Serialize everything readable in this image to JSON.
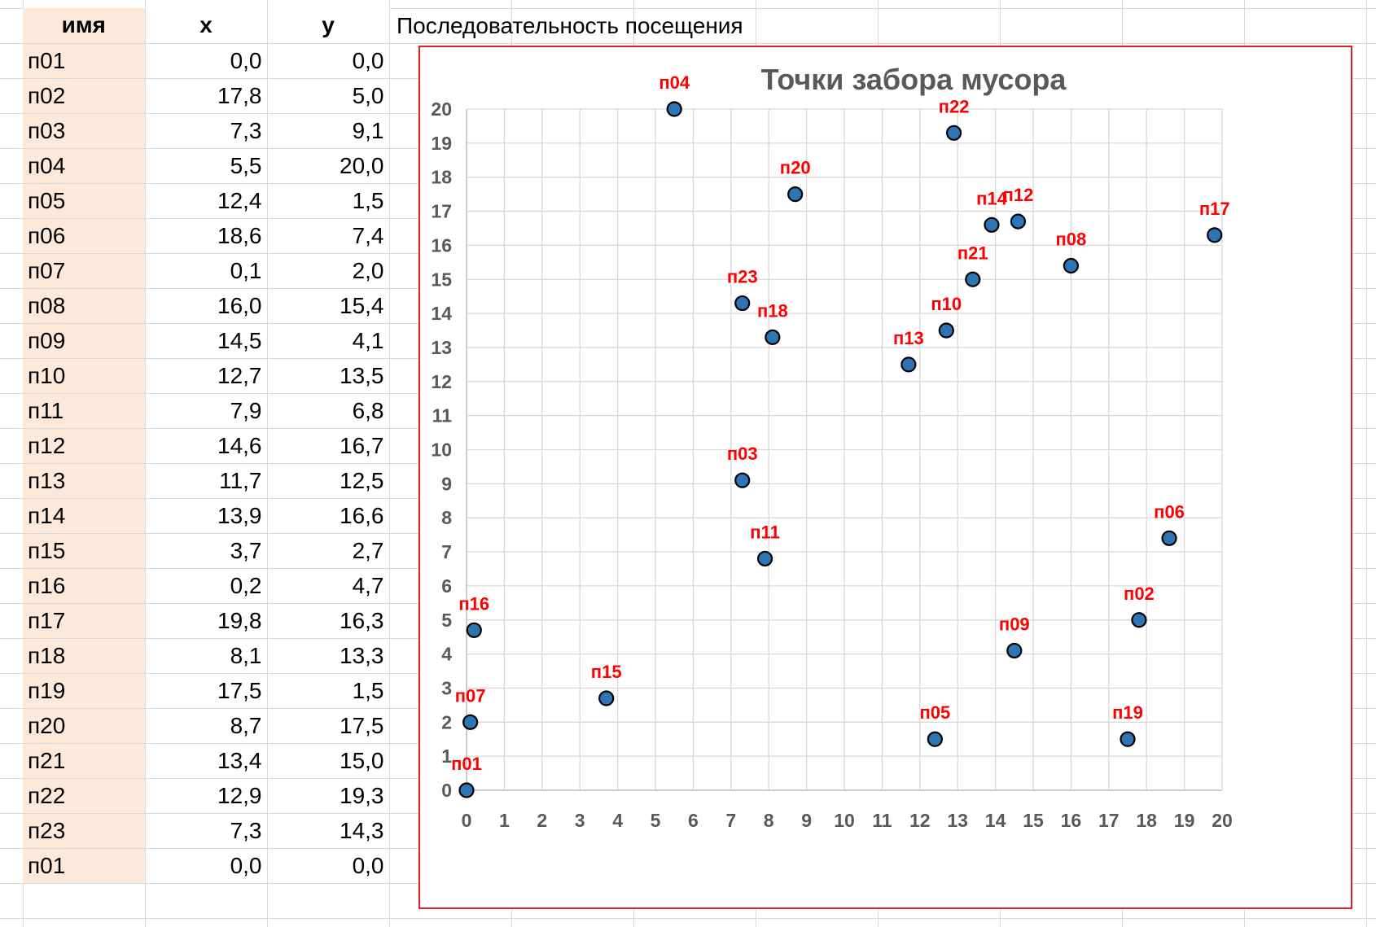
{
  "table": {
    "headers": [
      "имя",
      "x",
      "y"
    ],
    "rows": [
      {
        "name": "п01",
        "x": "0,0",
        "y": "0,0"
      },
      {
        "name": "п02",
        "x": "17,8",
        "y": "5,0"
      },
      {
        "name": "п03",
        "x": "7,3",
        "y": "9,1"
      },
      {
        "name": "п04",
        "x": "5,5",
        "y": "20,0"
      },
      {
        "name": "п05",
        "x": "12,4",
        "y": "1,5"
      },
      {
        "name": "п06",
        "x": "18,6",
        "y": "7,4"
      },
      {
        "name": "п07",
        "x": "0,1",
        "y": "2,0"
      },
      {
        "name": "п08",
        "x": "16,0",
        "y": "15,4"
      },
      {
        "name": "п09",
        "x": "14,5",
        "y": "4,1"
      },
      {
        "name": "п10",
        "x": "12,7",
        "y": "13,5"
      },
      {
        "name": "п11",
        "x": "7,9",
        "y": "6,8"
      },
      {
        "name": "п12",
        "x": "14,6",
        "y": "16,7"
      },
      {
        "name": "п13",
        "x": "11,7",
        "y": "12,5"
      },
      {
        "name": "п14",
        "x": "13,9",
        "y": "16,6"
      },
      {
        "name": "п15",
        "x": "3,7",
        "y": "2,7"
      },
      {
        "name": "п16",
        "x": "0,2",
        "y": "4,7"
      },
      {
        "name": "п17",
        "x": "19,8",
        "y": "16,3"
      },
      {
        "name": "п18",
        "x": "8,1",
        "y": "13,3"
      },
      {
        "name": "п19",
        "x": "17,5",
        "y": "1,5"
      },
      {
        "name": "п20",
        "x": "8,7",
        "y": "17,5"
      },
      {
        "name": "п21",
        "x": "13,4",
        "y": "15,0"
      },
      {
        "name": "п22",
        "x": "12,9",
        "y": "19,3"
      },
      {
        "name": "п23",
        "x": "7,3",
        "y": "14,3"
      },
      {
        "name": "п01",
        "x": "0,0",
        "y": "0,0"
      }
    ]
  },
  "route_header": "Последовательность посещения",
  "chart_data": {
    "type": "scatter",
    "title": "Точки забора мусора",
    "xlabel": "",
    "ylabel": "",
    "xlim": [
      0,
      20
    ],
    "ylim": [
      0,
      20
    ],
    "grid": true,
    "legend": "none",
    "xticks": [
      0,
      1,
      2,
      3,
      4,
      5,
      6,
      7,
      8,
      9,
      10,
      11,
      12,
      13,
      14,
      15,
      16,
      17,
      18,
      19,
      20
    ],
    "yticks": [
      0,
      1,
      2,
      3,
      4,
      5,
      6,
      7,
      8,
      9,
      10,
      11,
      12,
      13,
      14,
      15,
      16,
      17,
      18,
      19,
      20
    ],
    "marker_color": "#2e75b6",
    "label_color": "#ff0000",
    "points": [
      {
        "label": "п01",
        "x": 0.0,
        "y": 0.0
      },
      {
        "label": "п02",
        "x": 17.8,
        "y": 5.0
      },
      {
        "label": "п03",
        "x": 7.3,
        "y": 9.1
      },
      {
        "label": "п04",
        "x": 5.5,
        "y": 20.0
      },
      {
        "label": "п05",
        "x": 12.4,
        "y": 1.5
      },
      {
        "label": "п06",
        "x": 18.6,
        "y": 7.4
      },
      {
        "label": "п07",
        "x": 0.1,
        "y": 2.0
      },
      {
        "label": "п08",
        "x": 16.0,
        "y": 15.4
      },
      {
        "label": "п09",
        "x": 14.5,
        "y": 4.1
      },
      {
        "label": "п10",
        "x": 12.7,
        "y": 13.5
      },
      {
        "label": "п11",
        "x": 7.9,
        "y": 6.8
      },
      {
        "label": "п12",
        "x": 14.6,
        "y": 16.7
      },
      {
        "label": "п13",
        "x": 11.7,
        "y": 12.5
      },
      {
        "label": "п14",
        "x": 13.9,
        "y": 16.6
      },
      {
        "label": "п15",
        "x": 3.7,
        "y": 2.7
      },
      {
        "label": "п16",
        "x": 0.2,
        "y": 4.7
      },
      {
        "label": "п17",
        "x": 19.8,
        "y": 16.3
      },
      {
        "label": "п18",
        "x": 8.1,
        "y": 13.3
      },
      {
        "label": "п19",
        "x": 17.5,
        "y": 1.5
      },
      {
        "label": "п20",
        "x": 8.7,
        "y": 17.5
      },
      {
        "label": "п21",
        "x": 13.4,
        "y": 15.0
      },
      {
        "label": "п22",
        "x": 12.9,
        "y": 19.3
      },
      {
        "label": "п23",
        "x": 7.3,
        "y": 14.3
      }
    ]
  }
}
